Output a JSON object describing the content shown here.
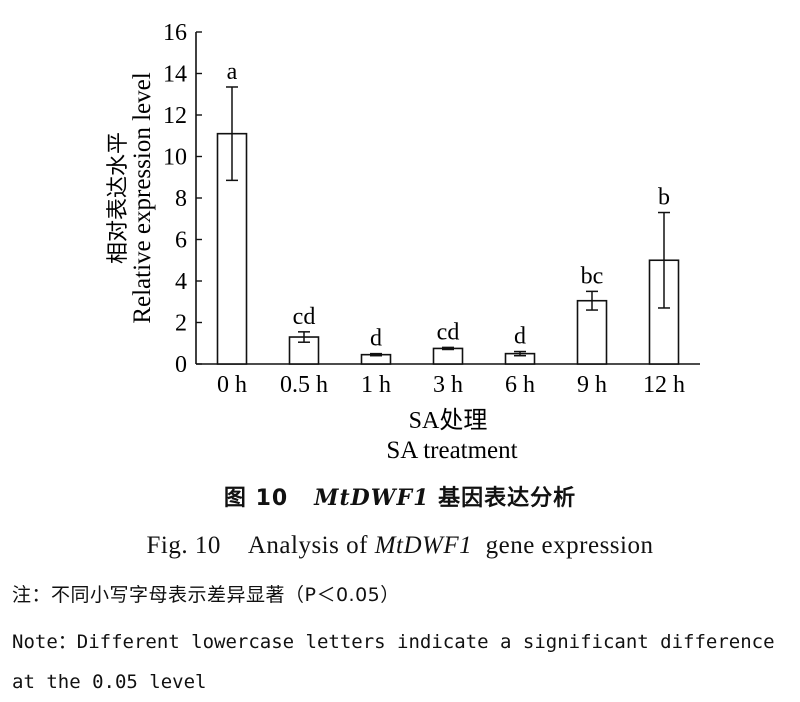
{
  "chart_data": {
    "type": "bar",
    "title": "",
    "xlabel_cn": "SA处理",
    "xlabel_en": "SA treatment",
    "ylabel_cn": "相对表达水平",
    "ylabel_en": "Relative expression level",
    "categories": [
      "0 h",
      "0.5 h",
      "1 h",
      "3 h",
      "6 h",
      "9 h",
      "12 h"
    ],
    "values": [
      11.1,
      1.3,
      0.45,
      0.75,
      0.5,
      3.05,
      5.0
    ],
    "errors": [
      2.25,
      0.25,
      0.05,
      0.05,
      0.1,
      0.45,
      2.3
    ],
    "letters": [
      "a",
      "cd",
      "d",
      "cd",
      "d",
      "bc",
      "b"
    ],
    "ylim": [
      0,
      16
    ],
    "yticks": [
      0,
      2,
      4,
      6,
      8,
      10,
      12,
      14,
      16
    ],
    "grid": false,
    "legend": "none"
  },
  "caption": {
    "cn_prefix": "图 10",
    "cn_gene": "MtDWF1",
    "cn_suffix": "基因表达分析",
    "en_prefix": "Fig. 10",
    "en_middle": "Analysis of",
    "en_gene": "MtDWF1",
    "en_suffix": "gene expression"
  },
  "note": {
    "cn": "注：不同小写字母表示差异显著（P＜0.05）",
    "en": "Note：Different lowercase letters indicate a significant difference at the 0.05 level"
  }
}
